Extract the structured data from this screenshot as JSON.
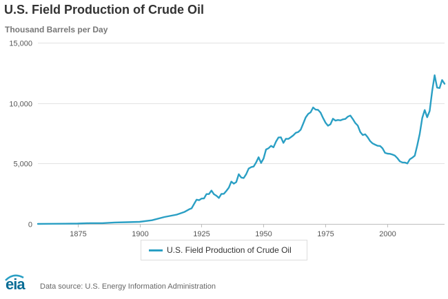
{
  "chart_data": {
    "type": "line",
    "title": "U.S. Field Production of Crude Oil",
    "ylabel": "Thousand Barrels per Day",
    "xlim": [
      1859,
      2023
    ],
    "ylim": [
      0,
      15000
    ],
    "yticks": [
      0,
      5000,
      10000,
      15000
    ],
    "ytick_labels": [
      "0",
      "5,000",
      "10,000",
      "15,000"
    ],
    "xticks": [
      1875,
      1900,
      1925,
      1950,
      1975,
      2000
    ],
    "xtick_labels": [
      "1875",
      "1900",
      "1925",
      "1950",
      "1975",
      "2000"
    ],
    "grid": true,
    "legend_position": "bottom-center",
    "series": [
      {
        "name": "U.S. Field Production of Crude Oil",
        "color": "#2a9fc4",
        "x": [
          1859,
          1865,
          1870,
          1875,
          1880,
          1885,
          1890,
          1895,
          1900,
          1905,
          1910,
          1915,
          1918,
          1920,
          1921,
          1923,
          1924,
          1925,
          1926,
          1927,
          1928,
          1929,
          1930,
          1931,
          1932,
          1933,
          1934,
          1935,
          1936,
          1937,
          1938,
          1939,
          1940,
          1941,
          1942,
          1943,
          1944,
          1945,
          1946,
          1947,
          1948,
          1949,
          1950,
          1951,
          1952,
          1953,
          1954,
          1955,
          1956,
          1957,
          1958,
          1959,
          1960,
          1961,
          1962,
          1963,
          1964,
          1965,
          1966,
          1967,
          1968,
          1969,
          1970,
          1971,
          1972,
          1973,
          1974,
          1975,
          1976,
          1977,
          1978,
          1979,
          1980,
          1981,
          1982,
          1983,
          1984,
          1985,
          1986,
          1987,
          1988,
          1989,
          1990,
          1991,
          1992,
          1993,
          1994,
          1995,
          1996,
          1997,
          1998,
          1999,
          2000,
          2001,
          2002,
          2003,
          2004,
          2005,
          2006,
          2007,
          2008,
          2009,
          2010,
          2011,
          2012,
          2013,
          2014,
          2015,
          2016,
          2017,
          2018,
          2019,
          2020,
          2021,
          2022,
          2023
        ],
        "values": [
          0,
          10,
          15,
          30,
          60,
          60,
          120,
          140,
          170,
          300,
          570,
          770,
          980,
          1210,
          1290,
          2010,
          1960,
          2100,
          2110,
          2470,
          2470,
          2760,
          2460,
          2330,
          2150,
          2480,
          2490,
          2730,
          3000,
          3500,
          3330,
          3460,
          4110,
          3840,
          3800,
          4120,
          4580,
          4700,
          4750,
          5090,
          5520,
          5050,
          5410,
          6160,
          6260,
          6460,
          6340,
          6810,
          7150,
          7170,
          6710,
          7050,
          7040,
          7180,
          7330,
          7540,
          7610,
          7800,
          8300,
          8810,
          9100,
          9240,
          9640,
          9460,
          9440,
          9210,
          8770,
          8380,
          8130,
          8250,
          8710,
          8550,
          8600,
          8570,
          8650,
          8690,
          8880,
          8970,
          8680,
          8350,
          8140,
          7610,
          7360,
          7420,
          7170,
          6850,
          6660,
          6560,
          6470,
          6450,
          6250,
          5880,
          5820,
          5800,
          5740,
          5650,
          5440,
          5180,
          5090,
          5080,
          5000,
          5350,
          5480,
          5650,
          6500,
          7460,
          8760,
          9430,
          8830,
          9350,
          10990,
          12310,
          11280,
          11250,
          11910,
          11600
        ]
      }
    ]
  },
  "legend": {
    "label": "U.S. Field Production of Crude Oil"
  },
  "footer": {
    "logo_text": "eia",
    "source": "Data source: U.S. Energy Information Administration"
  }
}
